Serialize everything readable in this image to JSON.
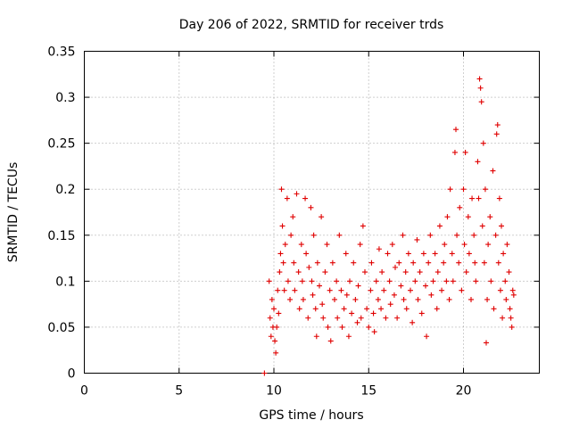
{
  "chart_data": {
    "type": "scatter",
    "title": "Day 206 of 2022, SRMTID for receiver trds",
    "xlabel": "GPS time / hours",
    "ylabel": "SRMTID / TECUs",
    "xlim": [
      0,
      24
    ],
    "ylim": [
      0,
      0.35
    ],
    "x_ticks": [
      "0",
      "5",
      "10",
      "15",
      "20"
    ],
    "y_ticks": [
      "0",
      "0.05",
      "0.1",
      "0.15",
      "0.2",
      "0.25",
      "0.3",
      "0.35"
    ],
    "grid": true,
    "legend": "none",
    "marker": "plus",
    "color": "#e00000",
    "series": [
      {
        "points": [
          [
            9.5,
            0.0
          ],
          [
            9.75,
            0.1
          ],
          [
            9.8,
            0.06
          ],
          [
            9.85,
            0.04
          ],
          [
            9.9,
            0.08
          ],
          [
            9.95,
            0.05
          ],
          [
            10.0,
            0.07
          ],
          [
            10.05,
            0.035
          ],
          [
            10.1,
            0.022
          ],
          [
            10.15,
            0.05
          ],
          [
            10.2,
            0.09
          ],
          [
            10.25,
            0.065
          ],
          [
            10.3,
            0.11
          ],
          [
            10.35,
            0.13
          ],
          [
            10.4,
            0.2
          ],
          [
            10.45,
            0.16
          ],
          [
            10.5,
            0.12
          ],
          [
            10.55,
            0.09
          ],
          [
            10.6,
            0.14
          ],
          [
            10.7,
            0.19
          ],
          [
            10.75,
            0.1
          ],
          [
            10.85,
            0.08
          ],
          [
            10.9,
            0.15
          ],
          [
            11.0,
            0.17
          ],
          [
            11.05,
            0.12
          ],
          [
            11.1,
            0.09
          ],
          [
            11.2,
            0.195
          ],
          [
            11.3,
            0.11
          ],
          [
            11.35,
            0.07
          ],
          [
            11.45,
            0.14
          ],
          [
            11.5,
            0.1
          ],
          [
            11.55,
            0.08
          ],
          [
            11.65,
            0.19
          ],
          [
            11.7,
            0.13
          ],
          [
            11.8,
            0.06
          ],
          [
            11.85,
            0.115
          ],
          [
            11.95,
            0.18
          ],
          [
            12.0,
            0.1
          ],
          [
            12.05,
            0.085
          ],
          [
            12.1,
            0.15
          ],
          [
            12.2,
            0.07
          ],
          [
            12.25,
            0.04
          ],
          [
            12.3,
            0.12
          ],
          [
            12.4,
            0.095
          ],
          [
            12.5,
            0.17
          ],
          [
            12.55,
            0.075
          ],
          [
            12.6,
            0.06
          ],
          [
            12.7,
            0.11
          ],
          [
            12.8,
            0.14
          ],
          [
            12.85,
            0.05
          ],
          [
            12.95,
            0.09
          ],
          [
            13.0,
            0.035
          ],
          [
            13.1,
            0.12
          ],
          [
            13.2,
            0.08
          ],
          [
            13.3,
            0.1
          ],
          [
            13.35,
            0.06
          ],
          [
            13.45,
            0.15
          ],
          [
            13.55,
            0.09
          ],
          [
            13.6,
            0.05
          ],
          [
            13.7,
            0.07
          ],
          [
            13.8,
            0.13
          ],
          [
            13.85,
            0.085
          ],
          [
            13.95,
            0.04
          ],
          [
            14.0,
            0.1
          ],
          [
            14.1,
            0.065
          ],
          [
            14.2,
            0.12
          ],
          [
            14.3,
            0.08
          ],
          [
            14.4,
            0.055
          ],
          [
            14.45,
            0.095
          ],
          [
            14.55,
            0.14
          ],
          [
            14.6,
            0.06
          ],
          [
            14.7,
            0.16
          ],
          [
            14.8,
            0.11
          ],
          [
            14.9,
            0.07
          ],
          [
            15.0,
            0.05
          ],
          [
            15.1,
            0.09
          ],
          [
            15.15,
            0.12
          ],
          [
            15.25,
            0.065
          ],
          [
            15.3,
            0.045
          ],
          [
            15.4,
            0.1
          ],
          [
            15.5,
            0.08
          ],
          [
            15.55,
            0.135
          ],
          [
            15.65,
            0.07
          ],
          [
            15.7,
            0.11
          ],
          [
            15.8,
            0.09
          ],
          [
            15.9,
            0.06
          ],
          [
            16.0,
            0.13
          ],
          [
            16.1,
            0.1
          ],
          [
            16.15,
            0.075
          ],
          [
            16.25,
            0.14
          ],
          [
            16.35,
            0.085
          ],
          [
            16.4,
            0.115
          ],
          [
            16.5,
            0.06
          ],
          [
            16.6,
            0.12
          ],
          [
            16.7,
            0.095
          ],
          [
            16.8,
            0.15
          ],
          [
            16.85,
            0.08
          ],
          [
            16.95,
            0.11
          ],
          [
            17.0,
            0.07
          ],
          [
            17.1,
            0.13
          ],
          [
            17.2,
            0.09
          ],
          [
            17.3,
            0.055
          ],
          [
            17.35,
            0.12
          ],
          [
            17.45,
            0.1
          ],
          [
            17.55,
            0.145
          ],
          [
            17.6,
            0.08
          ],
          [
            17.7,
            0.11
          ],
          [
            17.8,
            0.065
          ],
          [
            17.9,
            0.13
          ],
          [
            18.0,
            0.095
          ],
          [
            18.05,
            0.04
          ],
          [
            18.15,
            0.12
          ],
          [
            18.25,
            0.15
          ],
          [
            18.3,
            0.085
          ],
          [
            18.4,
            0.1
          ],
          [
            18.5,
            0.13
          ],
          [
            18.6,
            0.07
          ],
          [
            18.65,
            0.11
          ],
          [
            18.75,
            0.16
          ],
          [
            18.85,
            0.09
          ],
          [
            18.95,
            0.12
          ],
          [
            19.0,
            0.14
          ],
          [
            19.1,
            0.1
          ],
          [
            19.15,
            0.17
          ],
          [
            19.25,
            0.08
          ],
          [
            19.3,
            0.2
          ],
          [
            19.4,
            0.13
          ],
          [
            19.45,
            0.1
          ],
          [
            19.55,
            0.24
          ],
          [
            19.6,
            0.265
          ],
          [
            19.65,
            0.15
          ],
          [
            19.75,
            0.12
          ],
          [
            19.8,
            0.18
          ],
          [
            19.9,
            0.09
          ],
          [
            20.0,
            0.2
          ],
          [
            20.05,
            0.14
          ],
          [
            20.1,
            0.24
          ],
          [
            20.15,
            0.11
          ],
          [
            20.25,
            0.17
          ],
          [
            20.3,
            0.13
          ],
          [
            20.4,
            0.08
          ],
          [
            20.45,
            0.19
          ],
          [
            20.55,
            0.15
          ],
          [
            20.6,
            0.12
          ],
          [
            20.65,
            0.1
          ],
          [
            20.75,
            0.23
          ],
          [
            20.8,
            0.19
          ],
          [
            20.85,
            0.32
          ],
          [
            20.9,
            0.31
          ],
          [
            20.95,
            0.295
          ],
          [
            21.0,
            0.16
          ],
          [
            21.05,
            0.25
          ],
          [
            21.1,
            0.12
          ],
          [
            21.15,
            0.2
          ],
          [
            21.2,
            0.033
          ],
          [
            21.25,
            0.08
          ],
          [
            21.3,
            0.14
          ],
          [
            21.4,
            0.17
          ],
          [
            21.45,
            0.1
          ],
          [
            21.55,
            0.22
          ],
          [
            21.6,
            0.07
          ],
          [
            21.7,
            0.15
          ],
          [
            21.75,
            0.26
          ],
          [
            21.8,
            0.27
          ],
          [
            21.85,
            0.12
          ],
          [
            21.9,
            0.19
          ],
          [
            21.95,
            0.09
          ],
          [
            22.0,
            0.16
          ],
          [
            22.05,
            0.06
          ],
          [
            22.1,
            0.13
          ],
          [
            22.2,
            0.1
          ],
          [
            22.25,
            0.08
          ],
          [
            22.3,
            0.14
          ],
          [
            22.4,
            0.11
          ],
          [
            22.45,
            0.07
          ],
          [
            22.5,
            0.06
          ],
          [
            22.55,
            0.05
          ],
          [
            22.6,
            0.09
          ],
          [
            22.65,
            0.085
          ]
        ]
      }
    ]
  }
}
